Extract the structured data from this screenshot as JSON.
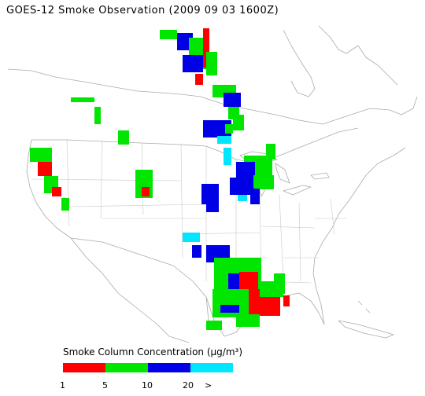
{
  "title": "GOES-12 Smoke Observation (2009 09 03  1600Z)",
  "legend": {
    "title": "Smoke Column Concentration (μg/m³)",
    "bins": [
      {
        "color": "#ff0000"
      },
      {
        "color": "#00e600"
      },
      {
        "color": "#0000e6"
      },
      {
        "color": "#00e6ff"
      }
    ],
    "ticks": [
      "1",
      "5",
      "10",
      "20",
      ">"
    ]
  },
  "colors": {
    "map_outline": "#aaaaaa",
    "bin_1_5": "#ff0000",
    "bin_5_10": "#00e600",
    "bin_10_20": "#0000e6",
    "bin_20_plus": "#00e6ff"
  }
}
